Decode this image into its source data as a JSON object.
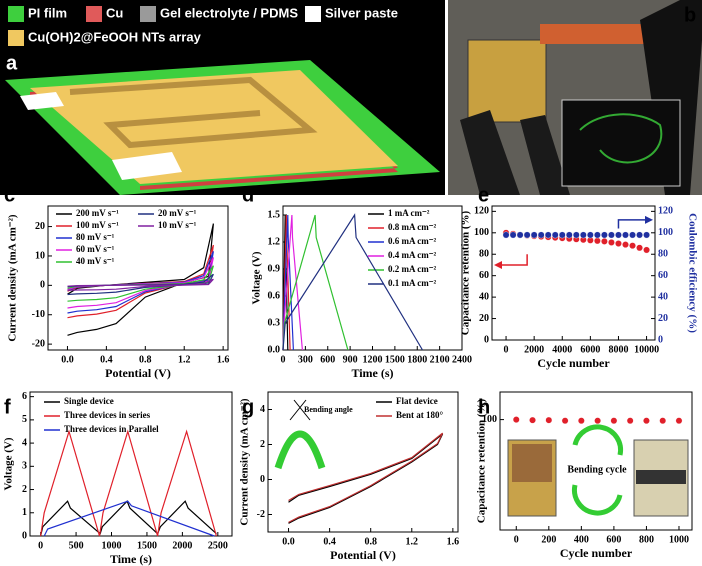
{
  "panel_labels": [
    "a",
    "b",
    "c",
    "d",
    "e",
    "f",
    "g",
    "h"
  ],
  "schematic": {
    "legend": [
      "PI film",
      "Cu",
      "Gel electrolyte / PDMS",
      "Silver paste",
      "Cu(OH)2@FeOOH NTs array"
    ],
    "legend_colors": [
      "#3ecf3e",
      "#e05a5a",
      "#9a9a9a",
      "#ffffff",
      "#f0c860"
    ]
  },
  "chart_data": [
    {
      "type": "line",
      "xlabel": "Potential (V)",
      "ylabel": "Current density (mA cm⁻²)",
      "xlim": [
        -0.2,
        1.65
      ],
      "ylim": [
        -22,
        27
      ],
      "xticks": [
        {
          "value": 0,
          "label": "0.0"
        },
        {
          "value": 0.4,
          "label": "0.4"
        },
        {
          "value": 0.8,
          "label": "0.8"
        },
        {
          "value": 1.2,
          "label": "1.2"
        },
        {
          "value": 1.6,
          "label": "1.6"
        }
      ],
      "yticks": [
        -20,
        -10,
        0,
        10,
        20
      ],
      "x": [
        0,
        0.1,
        0.4,
        0.8,
        1.2,
        1.4,
        1.5,
        1.45,
        1.2,
        0.8,
        0.5,
        0.3,
        0.1,
        0
      ],
      "series": [
        {
          "name": "200 mV s⁻¹",
          "color": "#000000",
          "values": [
            -3,
            -1,
            0,
            1,
            2,
            6,
            21,
            3,
            1,
            -4,
            -13,
            -15,
            -16,
            -17
          ]
        },
        {
          "name": "100 mV s⁻¹",
          "color": "#e0202a",
          "values": [
            -2,
            -0.7,
            0,
            0.7,
            1.3,
            3.9,
            13.7,
            2,
            0.7,
            -2.6,
            -8.5,
            -9.8,
            -10.4,
            -11
          ]
        },
        {
          "name": "80 mV s⁻¹",
          "color": "#2030d0",
          "values": [
            -1.7,
            -0.6,
            0,
            0.6,
            1.1,
            3.3,
            11.6,
            1.7,
            0.6,
            -2.2,
            -7.2,
            -8.3,
            -8.8,
            -9.4
          ]
        },
        {
          "name": "60 mV s⁻¹",
          "color": "#e020e0",
          "values": [
            -1.4,
            -0.5,
            0,
            0.5,
            0.9,
            2.7,
            9.5,
            1.4,
            0.5,
            -1.8,
            -5.9,
            -6.8,
            -7.2,
            -7.7
          ]
        },
        {
          "name": "40 mV s⁻¹",
          "color": "#30c030",
          "values": [
            -1,
            -0.3,
            0,
            0.3,
            0.6,
            1.9,
            6.7,
            1,
            0.3,
            -1.3,
            -4.2,
            -4.8,
            -5.1,
            -5.4
          ]
        },
        {
          "name": "20 mV s⁻¹",
          "color": "#203080",
          "values": [
            -0.5,
            -0.2,
            0,
            0.2,
            0.4,
            1.1,
            3.8,
            0.5,
            0.2,
            -0.7,
            -2.3,
            -2.7,
            -2.9,
            -3.1
          ]
        },
        {
          "name": "10 mV s⁻¹",
          "color": "#8020a0",
          "values": [
            -0.3,
            -0.1,
            0,
            0.1,
            0.2,
            0.6,
            2.1,
            0.3,
            0.1,
            -0.4,
            -1.3,
            -1.5,
            -1.6,
            -1.7
          ]
        }
      ]
    },
    {
      "type": "line",
      "xlabel": "Time (s)",
      "ylabel": "Voltage (V)",
      "xlim": [
        0,
        2400
      ],
      "ylim": [
        0,
        1.6
      ],
      "xticks": [
        0,
        300,
        600,
        900,
        1200,
        1500,
        1800,
        2100,
        2400
      ],
      "yticks": [
        {
          "value": 0,
          "label": "0.0"
        },
        {
          "value": 0.3,
          "label": "0.3"
        },
        {
          "value": 0.6,
          "label": "0.6"
        },
        {
          "value": 0.9,
          "label": "0.9"
        },
        {
          "value": 1.2,
          "label": "1.2"
        },
        {
          "value": 1.5,
          "label": "1.5"
        }
      ],
      "series": [
        {
          "name": "1 mA cm⁻²",
          "color": "#000000",
          "x": [
            0,
            5,
            30,
            33,
            65
          ],
          "values": [
            0,
            0.3,
            1.5,
            1.25,
            0
          ]
        },
        {
          "name": "0.8 mA cm⁻²",
          "color": "#e0202a",
          "x": [
            0,
            7,
            45,
            49,
            95
          ],
          "values": [
            0,
            0.3,
            1.5,
            1.25,
            0
          ]
        },
        {
          "name": "0.6 mA cm⁻²",
          "color": "#2030d0",
          "x": [
            0,
            10,
            65,
            70,
            140
          ],
          "values": [
            0,
            0.3,
            1.5,
            1.25,
            0
          ]
        },
        {
          "name": "0.4 mA cm⁻²",
          "color": "#e020e0",
          "x": [
            0,
            15,
            120,
            128,
            260
          ],
          "values": [
            0,
            0.3,
            1.5,
            1.25,
            0
          ]
        },
        {
          "name": "0.2 mA cm⁻²",
          "color": "#30c030",
          "x": [
            0,
            20,
            430,
            445,
            870
          ],
          "values": [
            0,
            0.3,
            1.5,
            1.25,
            0
          ]
        },
        {
          "name": "0.1 mA cm⁻²",
          "color": "#203080",
          "x": [
            0,
            30,
            960,
            980,
            1870
          ],
          "values": [
            0,
            0.3,
            1.5,
            1.25,
            0
          ]
        }
      ]
    },
    {
      "type": "scatter",
      "xlabel": "Cycle number",
      "ylabel": "Capacitance retention (%)",
      "y2label": "Coulombic efficiency (%)",
      "xlim": [
        -1000,
        10600
      ],
      "ylim": [
        0,
        125
      ],
      "y2lim": [
        0,
        125
      ],
      "xticks": [
        0,
        2000,
        4000,
        6000,
        8000,
        10000
      ],
      "yticks": [
        0,
        20,
        40,
        60,
        80,
        100,
        120
      ],
      "y2ticks": [
        0,
        20,
        40,
        60,
        80,
        100,
        120
      ],
      "x": [
        0,
        500,
        1000,
        1500,
        2000,
        2500,
        3000,
        3500,
        4000,
        4500,
        5000,
        5500,
        6000,
        6500,
        7000,
        7500,
        8000,
        8500,
        9000,
        9500,
        10000
      ],
      "series": [
        {
          "color": "#e0202a",
          "values": [
            100,
            99,
            98,
            97.5,
            97,
            96.5,
            96,
            95.5,
            95,
            94.5,
            94,
            93.5,
            93,
            92.5,
            92,
            91,
            90,
            89,
            88,
            86,
            84
          ]
        },
        {
          "color": "#2030a0",
          "axis": "y2",
          "values": [
            98,
            98,
            98,
            98,
            98,
            98,
            98,
            98,
            98,
            98,
            98,
            98,
            98,
            98,
            98,
            98,
            98,
            98,
            98,
            98,
            98
          ]
        }
      ]
    },
    {
      "type": "line",
      "xlabel": "Time (s)",
      "ylabel": "Voltage (V)",
      "xlim": [
        -150,
        2700
      ],
      "ylim": [
        0,
        6.2
      ],
      "xticks": [
        0,
        500,
        1000,
        1500,
        2000,
        2500
      ],
      "yticks": [
        0,
        1,
        2,
        3,
        4,
        5,
        6
      ],
      "series": [
        {
          "name": "Single device",
          "color": "#000000",
          "x": [
            0,
            30,
            380,
            420,
            840,
            870,
            1220,
            1260,
            1650,
            1690,
            2040,
            2080,
            2480
          ],
          "values": [
            0,
            0.4,
            1.5,
            1.2,
            0.1,
            0.4,
            1.5,
            1.2,
            0.1,
            0.4,
            1.5,
            1.2,
            0.1
          ]
        },
        {
          "name": "Three devices in series",
          "color": "#e0202a",
          "x": [
            0,
            50,
            400,
            830,
            880,
            1230,
            1650,
            1700,
            2060,
            2480
          ],
          "values": [
            0,
            1,
            4.5,
            0,
            1,
            4.5,
            0,
            1,
            4.5,
            0
          ]
        },
        {
          "name": "Three devices in Parallel",
          "color": "#2030d0",
          "x": [
            50,
            100,
            1230,
            1280,
            2450
          ],
          "values": [
            0,
            0.3,
            1.5,
            1.3,
            0
          ]
        }
      ]
    },
    {
      "type": "line",
      "xlabel": "Potential (V)",
      "ylabel": "Current density (mA cm⁻²)",
      "annotation": "Bending angle",
      "xlim": [
        -0.2,
        1.65
      ],
      "ylim": [
        -3,
        5
      ],
      "xticks": [
        {
          "value": 0,
          "label": "0.0"
        },
        {
          "value": 0.4,
          "label": "0.4"
        },
        {
          "value": 0.8,
          "label": "0.8"
        },
        {
          "value": 1.2,
          "label": "1.2"
        },
        {
          "value": 1.6,
          "label": "1.6"
        }
      ],
      "yticks": [
        -2,
        0,
        2,
        4
      ],
      "x": [
        0,
        0.1,
        0.4,
        0.8,
        1.2,
        1.5,
        1.45,
        1.2,
        0.8,
        0.4,
        0.1,
        0
      ],
      "series": [
        {
          "name": "Flat device",
          "color": "#000000",
          "values": [
            -1.3,
            -0.9,
            -0.4,
            0.3,
            1.2,
            2.6,
            2.0,
            1.0,
            -0.4,
            -1.6,
            -2.2,
            -2.5
          ]
        },
        {
          "name": "Bent at 180°",
          "color": "#c03030",
          "values": [
            -1.2,
            -0.85,
            -0.35,
            0.35,
            1.25,
            2.65,
            2.05,
            1.05,
            -0.35,
            -1.55,
            -2.15,
            -2.45
          ]
        }
      ]
    },
    {
      "type": "scatter",
      "xlabel": "Cycle number",
      "ylabel": "Capacitance retention (%)",
      "annotation": "Bending cycle",
      "xlim": [
        -100,
        1080
      ],
      "ylim": [
        0,
        125
      ],
      "xticks": [
        0,
        200,
        400,
        600,
        800,
        1000
      ],
      "yticks": [
        100
      ],
      "x": [
        0,
        100,
        200,
        300,
        400,
        500,
        600,
        700,
        800,
        900,
        1000
      ],
      "series": [
        {
          "color": "#e0202a",
          "values": [
            100,
            99.5,
            99.5,
            99,
            99,
            99,
            99,
            99,
            99,
            99,
            99
          ]
        }
      ]
    }
  ]
}
